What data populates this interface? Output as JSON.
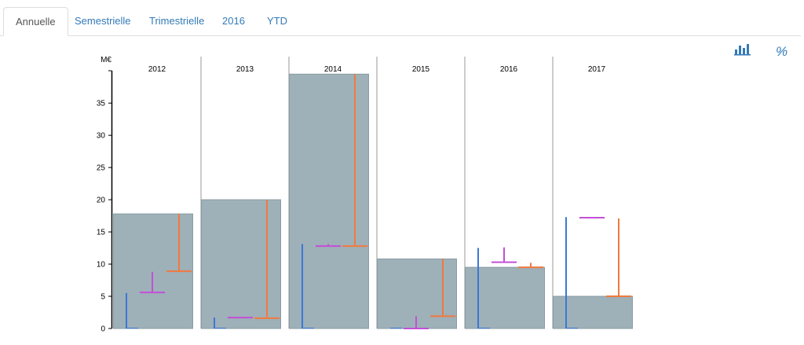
{
  "tabs": [
    {
      "label": "Annuelle",
      "active": true
    },
    {
      "label": "Semestrielle",
      "active": false
    },
    {
      "label": "Trimestrielle",
      "active": false
    },
    {
      "label": "2016",
      "active": false
    },
    {
      "label": "YTD",
      "active": false
    }
  ],
  "toolbar": {
    "chart_icon": "bar-chart-icon",
    "percent_label": "%"
  },
  "colors": {
    "bar": "#9eb0b8",
    "bar_stroke": "#8a9ba3",
    "blue": "#3a78d8",
    "magenta": "#c34fd6",
    "orange": "#f07a3e",
    "link": "#337ab7"
  },
  "chart_data": {
    "type": "bar",
    "ylabel": "M€",
    "ylim": [
      0,
      40
    ],
    "yticks": [
      0,
      5,
      10,
      15,
      20,
      25,
      30,
      35
    ],
    "categories": [
      "2012",
      "2013",
      "2014",
      "2015",
      "2016",
      "2017"
    ],
    "values": [
      17.8,
      20.0,
      39.5,
      10.8,
      9.5,
      5.0
    ],
    "series": [
      {
        "name": "",
        "color": "blue",
        "ranges": [
          [
            0,
            5.5
          ],
          [
            0,
            1.7
          ],
          [
            0,
            13.1
          ],
          [
            0,
            0
          ],
          [
            0,
            12.5
          ],
          [
            0,
            17.3
          ]
        ]
      },
      {
        "name": "",
        "color": "magenta",
        "ranges": [
          [
            5.6,
            8.8
          ],
          [
            1.7,
            1.7
          ],
          [
            12.8,
            13.1
          ],
          [
            0,
            1.9
          ],
          [
            10.3,
            12.6
          ],
          [
            17.2,
            17.3
          ]
        ]
      },
      {
        "name": "",
        "color": "orange",
        "ranges": [
          [
            8.9,
            17.8
          ],
          [
            1.6,
            20.0
          ],
          [
            12.8,
            39.5
          ],
          [
            1.9,
            10.8
          ],
          [
            9.5,
            10.2
          ],
          [
            5.0,
            17.1
          ]
        ]
      }
    ]
  }
}
